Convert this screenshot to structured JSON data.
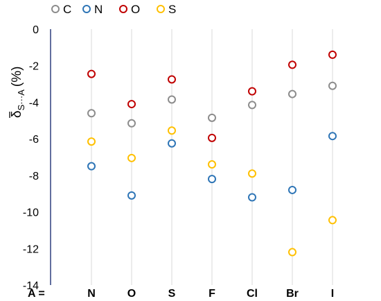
{
  "chart_data": {
    "type": "scatter",
    "xlabel_prefix": "A =",
    "ylabel_symbol": "δ",
    "ylabel_subscript": "S···A",
    "ylabel_unit": "(%)",
    "categories": [
      "N",
      "O",
      "S",
      "F",
      "Cl",
      "Br",
      "I"
    ],
    "ylim": [
      -14,
      0
    ],
    "yticks": [
      "0",
      "-2",
      "-4",
      "-6",
      "-8",
      "-10",
      "-12",
      "-14"
    ],
    "ytick_values": [
      0,
      -2,
      -4,
      -6,
      -8,
      -10,
      -12,
      -14
    ],
    "grid": "vertical",
    "legend_position": "top",
    "series": [
      {
        "name": "C",
        "color": "#8c8c8c",
        "values": [
          -4.6,
          -5.15,
          -3.85,
          -4.85,
          -4.15,
          -3.55,
          -3.1
        ]
      },
      {
        "name": "N",
        "color": "#2e75b6",
        "values": [
          -7.5,
          -9.1,
          -6.25,
          -8.2,
          -9.2,
          -8.8,
          -5.85
        ]
      },
      {
        "name": "O",
        "color": "#c00000",
        "values": [
          -2.45,
          -4.1,
          -2.75,
          -5.95,
          -3.4,
          -1.95,
          -1.4
        ]
      },
      {
        "name": "S",
        "color": "#ffc000",
        "values": [
          -6.15,
          -7.05,
          -5.55,
          -7.4,
          -7.9,
          -12.2,
          -10.45
        ]
      }
    ]
  }
}
